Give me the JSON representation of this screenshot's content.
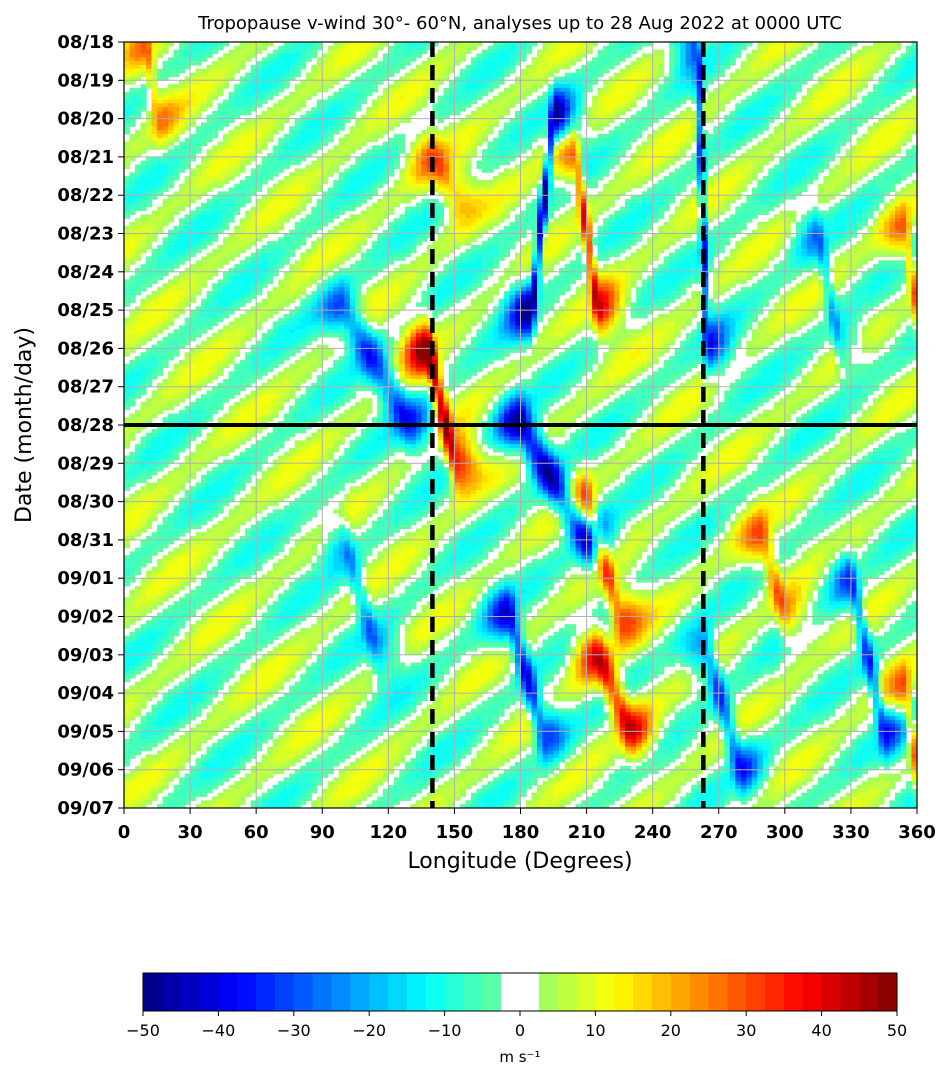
{
  "chart_data": {
    "type": "heatmap",
    "title": "Tropopause v-wind 30°- 60°N, analyses up to 28 Aug 2022 at 0000 UTC",
    "xlabel": "Longitude (Degrees)",
    "ylabel": "Date (month/day)",
    "xlim": [
      0,
      360
    ],
    "x_ticks": [
      0,
      30,
      60,
      90,
      120,
      150,
      180,
      210,
      240,
      270,
      300,
      330,
      360
    ],
    "y_ticks": [
      "08/18",
      "08/19",
      "08/20",
      "08/21",
      "08/22",
      "08/23",
      "08/24",
      "08/25",
      "08/26",
      "08/27",
      "08/28",
      "08/29",
      "08/30",
      "08/31",
      "09/01",
      "09/02",
      "09/03",
      "09/04",
      "09/05",
      "09/06",
      "09/07"
    ],
    "grid": true,
    "reference_lines": {
      "horizontal_solid_date": "08/28",
      "vertical_dashed_longitudes": [
        140,
        263
      ]
    },
    "colorbar": {
      "label": "m s⁻¹",
      "min": -50,
      "max": 50,
      "step": 2.5,
      "ticks": [
        -50,
        -40,
        -30,
        -20,
        -10,
        0,
        10,
        20,
        30,
        40,
        50
      ],
      "white_band": [
        -2.5,
        2.5
      ],
      "colormap": "jet"
    },
    "features": [
      {
        "sign": "negative",
        "lon_start": 195,
        "date_start": "08/20",
        "lon_end": 185,
        "date_end": "08/25",
        "peak": -45
      },
      {
        "sign": "negative",
        "lon_start": 180,
        "date_start": "08/28",
        "lon_end": 210,
        "date_end": "08/31",
        "peak": -45
      },
      {
        "sign": "positive",
        "lon_start": 205,
        "date_start": "08/21",
        "lon_end": 215,
        "date_end": "08/25",
        "peak": 35
      },
      {
        "sign": "positive",
        "lon_start": 138,
        "date_start": "08/26",
        "lon_end": 150,
        "date_end": "08/29",
        "peak": 45
      },
      {
        "sign": "negative",
        "lon_start": 100,
        "date_start": "08/25",
        "lon_end": 130,
        "date_end": "08/28",
        "peak": -30
      },
      {
        "sign": "positive",
        "lon_start": 210,
        "date_start": "08/30",
        "lon_end": 225,
        "date_end": "09/02",
        "peak": 30
      },
      {
        "sign": "positive",
        "lon_start": 215,
        "date_start": "09/03",
        "lon_end": 230,
        "date_end": "09/05",
        "peak": 40
      },
      {
        "sign": "negative",
        "lon_start": 175,
        "date_start": "09/02",
        "lon_end": 190,
        "date_end": "09/05",
        "peak": -35
      },
      {
        "sign": "negative",
        "lon_start": 330,
        "date_start": "09/01",
        "lon_end": 345,
        "date_end": "09/05",
        "peak": -30
      },
      {
        "sign": "negative",
        "lon_start": 265,
        "date_start": "09/03",
        "lon_end": 280,
        "date_end": "09/06",
        "peak": -30
      },
      {
        "sign": "negative",
        "lon_start": 260,
        "date_start": "08/18",
        "lon_end": 265,
        "date_end": "08/26",
        "peak": -30
      },
      {
        "sign": "positive",
        "lon_start": 290,
        "date_start": "08/31",
        "lon_end": 300,
        "date_end": "09/02",
        "peak": 25
      },
      {
        "sign": "positive",
        "lon_start": 355,
        "date_start": "08/23",
        "lon_end": 360,
        "date_end": "08/25",
        "peak": 25
      },
      {
        "sign": "positive",
        "lon_start": 355,
        "date_start": "09/04",
        "lon_end": 360,
        "date_end": "09/06",
        "peak": 25
      },
      {
        "sign": "positive",
        "lon_start": 140,
        "date_start": "08/21",
        "lon_end": 150,
        "date_end": "08/22",
        "peak": 22
      },
      {
        "sign": "negative",
        "lon_start": 100,
        "date_start": "08/31",
        "lon_end": 115,
        "date_end": "09/03",
        "peak": -20
      },
      {
        "sign": "positive",
        "lon_start": 10,
        "date_start": "08/18",
        "lon_end": 15,
        "date_end": "08/20",
        "peak": 18
      },
      {
        "sign": "negative",
        "lon_start": 315,
        "date_start": "08/23",
        "lon_end": 325,
        "date_end": "08/26",
        "peak": -20
      }
    ]
  }
}
